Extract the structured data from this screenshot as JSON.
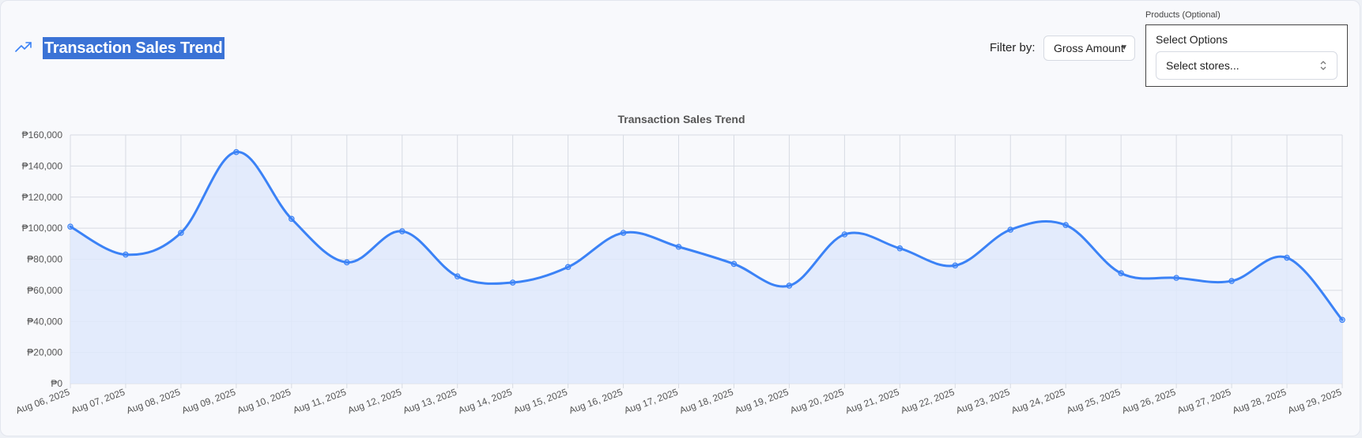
{
  "header": {
    "title": "Transaction Sales Trend",
    "icon": "trend-up-icon"
  },
  "filter": {
    "label": "Filter by:",
    "selected": "Gross Amount"
  },
  "products": {
    "label": "Products (Optional)",
    "caption": "Select Options",
    "select_placeholder": "Select stores..."
  },
  "colors": {
    "accent": "#3b82f6",
    "fill": "#dfe9fb",
    "grid": "#d7dbe3",
    "title_highlight": "#3b73d6"
  },
  "chart_data": {
    "type": "area",
    "title": "Transaction Sales Trend",
    "xlabel": "",
    "ylabel": "",
    "ylim": [
      0,
      160000
    ],
    "yticks": [
      0,
      20000,
      40000,
      60000,
      80000,
      100000,
      120000,
      140000,
      160000
    ],
    "y_tick_labels": [
      "₱0",
      "₱20,000",
      "₱40,000",
      "₱60,000",
      "₱80,000",
      "₱100,000",
      "₱120,000",
      "₱140,000",
      "₱160,000"
    ],
    "grid": true,
    "categories": [
      "Aug 06, 2025",
      "Aug 07, 2025",
      "Aug 08, 2025",
      "Aug 09, 2025",
      "Aug 10, 2025",
      "Aug 11, 2025",
      "Aug 12, 2025",
      "Aug 13, 2025",
      "Aug 14, 2025",
      "Aug 15, 2025",
      "Aug 16, 2025",
      "Aug 17, 2025",
      "Aug 18, 2025",
      "Aug 19, 2025",
      "Aug 20, 2025",
      "Aug 21, 2025",
      "Aug 22, 2025",
      "Aug 23, 2025",
      "Aug 24, 2025",
      "Aug 25, 2025",
      "Aug 26, 2025",
      "Aug 27, 2025",
      "Aug 28, 2025",
      "Aug 29, 2025"
    ],
    "series": [
      {
        "values": [
          101000,
          83000,
          97000,
          149000,
          106000,
          78000,
          98000,
          69000,
          65000,
          75000,
          97000,
          88000,
          77000,
          63000,
          96000,
          87000,
          76000,
          99000,
          102000,
          71000,
          68000,
          66000,
          81000,
          41000
        ]
      }
    ]
  }
}
